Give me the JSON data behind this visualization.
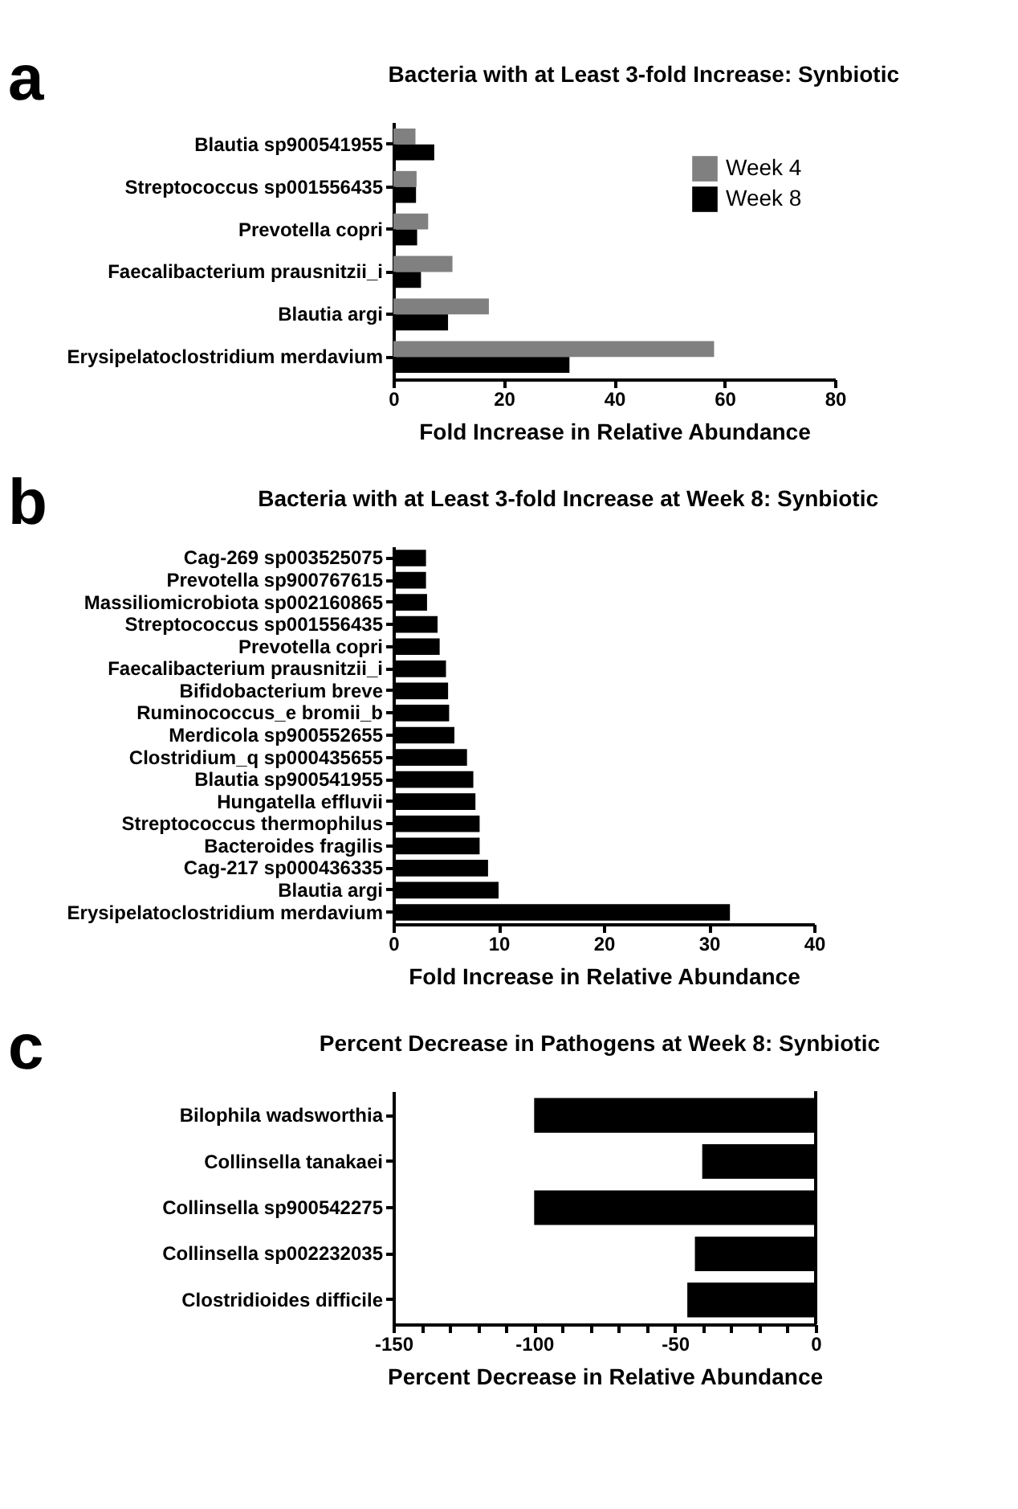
{
  "chart_data": [
    {
      "type": "bar",
      "orientation": "horizontal",
      "title": "Bacteria with at Least 3-fold Increase: Synbiotic",
      "annotations": [
        "a"
      ],
      "xlabel": "Fold Increase in Relative Abundance",
      "categories": [
        "Blautia sp900541955",
        "Streptococcus sp001556435",
        "Prevotella copri",
        "Faecalibacterium prausnitzii_i",
        "Blautia argi",
        "Erysipelatoclostridium merdavium"
      ],
      "series": [
        {
          "name": "Week 4",
          "color": "#808080",
          "values": [
            4.0,
            4.2,
            6.3,
            10.7,
            17.3,
            58.1
          ]
        },
        {
          "name": "Week 8",
          "color": "#000000",
          "values": [
            7.4,
            4.1,
            4.3,
            5.0,
            9.9,
            31.9
          ]
        }
      ],
      "xlim": [
        0,
        80
      ],
      "xticks": [
        0,
        20,
        40,
        60,
        80
      ],
      "grid": false,
      "legend": "top right"
    },
    {
      "type": "bar",
      "orientation": "horizontal",
      "title": "Bacteria with at Least 3-fold Increase at Week 8: Synbiotic",
      "annotations": [
        "b"
      ],
      "xlabel": "Fold Increase in Relative Abundance",
      "categories": [
        "Cag-269 sp003525075",
        "Prevotella sp900767615",
        "Massiliomicrobiota sp002160865",
        "Streptococcus sp001556435",
        "Prevotella copri",
        "Faecalibacterium prausnitzii_i",
        "Bifidobacterium breve",
        "Ruminococcus_e bromii_b",
        "Merdicola sp900552655",
        "Clostridium_q sp000435655",
        "Blautia sp900541955",
        "Hungatella effluvii",
        "Streptococcus thermophilus",
        "Bacteroides fragilis",
        "Cag-217 sp000436335",
        "Blautia argi",
        "Erysipelatoclostridium merdavium"
      ],
      "series": [
        {
          "color": "#000000",
          "values": [
            3.1,
            3.1,
            3.2,
            4.2,
            4.4,
            5.0,
            5.2,
            5.3,
            5.8,
            7.0,
            7.6,
            7.8,
            8.2,
            8.2,
            9.0,
            10.0,
            32.0
          ]
        }
      ],
      "xlim": [
        0,
        40
      ],
      "xticks": [
        0,
        10,
        20,
        30,
        40
      ],
      "grid": false,
      "legend": false
    },
    {
      "type": "bar",
      "orientation": "horizontal",
      "title": "Percent Decrease in Pathogens at Week 8: Synbiotic",
      "annotations": [
        "c"
      ],
      "xlabel": "Percent Decrease in Relative Abundance",
      "categories": [
        "Bilophila wadsworthia",
        "Collinsella tanakaei",
        "Collinsella sp900542275",
        "Collinsella sp002232035",
        "Clostridioides difficile"
      ],
      "series": [
        {
          "color": "#000000",
          "values": [
            -100,
            -40.3,
            -100,
            -42.9,
            -45.6
          ]
        }
      ],
      "xlim": [
        -150,
        0
      ],
      "xticks": [
        -150,
        {
          "value": -140,
          "label": null
        },
        {
          "value": -130,
          "label": null
        },
        {
          "value": -120,
          "label": null
        },
        {
          "value": -110,
          "label": null
        },
        -100,
        {
          "value": -90,
          "label": null
        },
        {
          "value": -80,
          "label": null
        },
        {
          "value": -70,
          "label": null
        },
        {
          "value": -60,
          "label": null
        },
        -50,
        {
          "value": -40,
          "label": null
        },
        {
          "value": -30,
          "label": null
        },
        {
          "value": -20,
          "label": null
        },
        {
          "value": -10,
          "label": null
        },
        0
      ],
      "ref_lines": [
        {
          "axis": "x",
          "value": 0
        }
      ],
      "grid": false,
      "legend": false
    }
  ]
}
